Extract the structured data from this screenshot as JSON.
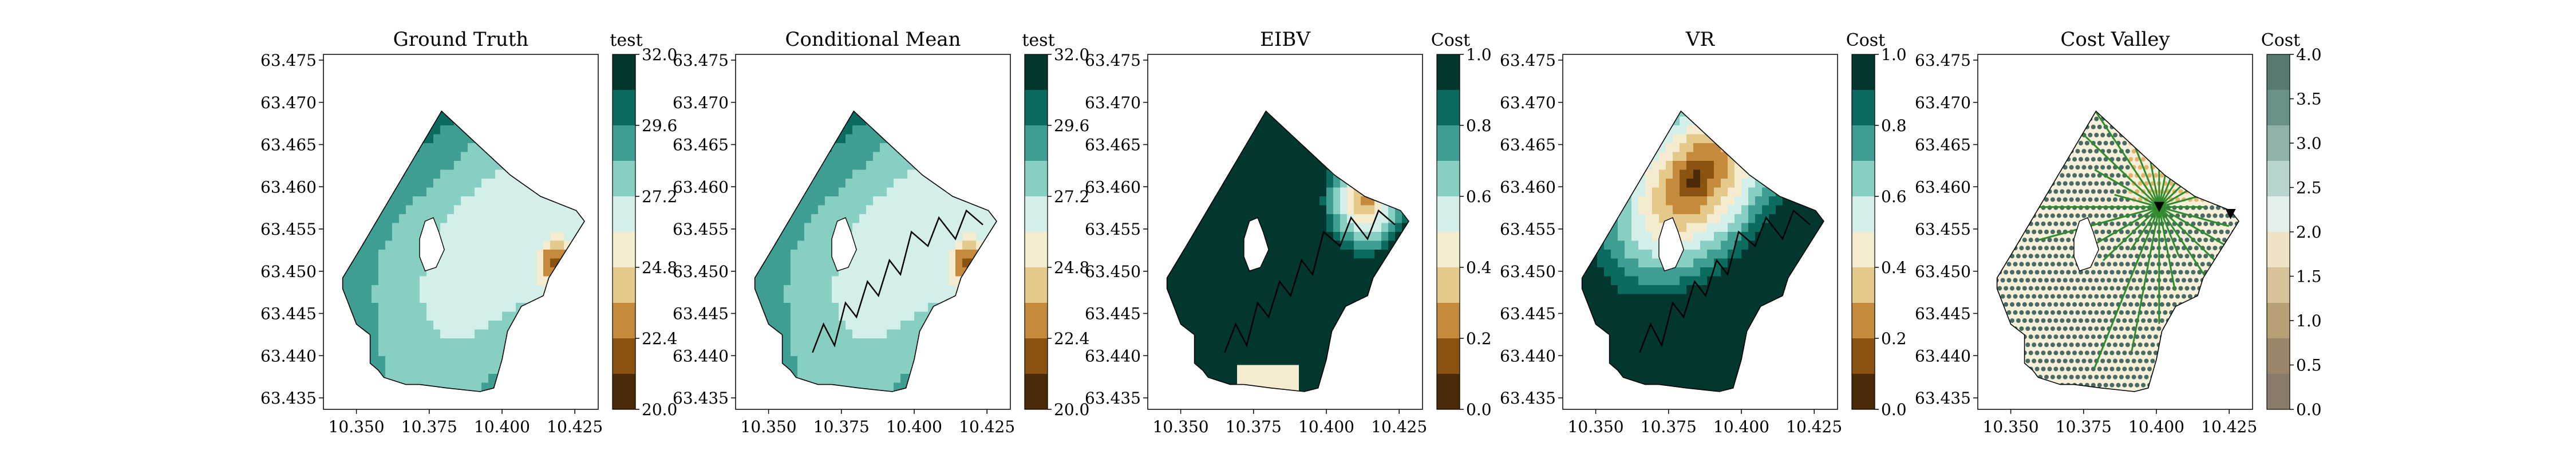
{
  "chart_data": [
    {
      "type": "heatmap",
      "title": "Ground Truth",
      "colorbar_title": "test",
      "colorbar_ticks": [
        "20.0",
        "22.4",
        "24.8",
        "27.2",
        "29.6",
        "32.0"
      ],
      "colorbar_range": [
        20.0,
        32.0
      ],
      "xticks": [
        "10.350",
        "10.375",
        "10.400",
        "10.425"
      ],
      "yticks": [
        "63.435",
        "63.440",
        "63.445",
        "63.450",
        "63.455",
        "63.460",
        "63.465",
        "63.470",
        "63.475"
      ],
      "xlim": [
        10.34,
        10.44
      ],
      "ylim": [
        63.433,
        63.476
      ],
      "colormap": "BrBG",
      "has_path": false
    },
    {
      "type": "heatmap",
      "title": "Conditional Mean",
      "colorbar_title": "test",
      "colorbar_ticks": [
        "20.0",
        "22.4",
        "24.8",
        "27.2",
        "29.6",
        "32.0"
      ],
      "colorbar_range": [
        20.0,
        32.0
      ],
      "xticks": [
        "10.350",
        "10.375",
        "10.400",
        "10.425"
      ],
      "yticks": [
        "63.435",
        "63.440",
        "63.445",
        "63.450",
        "63.455",
        "63.460",
        "63.465",
        "63.470",
        "63.475"
      ],
      "xlim": [
        10.34,
        10.44
      ],
      "ylim": [
        63.433,
        63.476
      ],
      "colormap": "BrBG",
      "has_path": true
    },
    {
      "type": "heatmap",
      "title": "EIBV",
      "colorbar_title": "Cost",
      "colorbar_ticks": [
        "0.0",
        "0.2",
        "0.4",
        "0.6",
        "0.8",
        "1.0"
      ],
      "colorbar_range": [
        0.0,
        1.0
      ],
      "xticks": [
        "10.350",
        "10.375",
        "10.400",
        "10.425"
      ],
      "yticks": [
        "63.435",
        "63.440",
        "63.445",
        "63.450",
        "63.455",
        "63.460",
        "63.465",
        "63.470",
        "63.475"
      ],
      "xlim": [
        10.34,
        10.44
      ],
      "ylim": [
        63.433,
        63.476
      ],
      "colormap": "BrBG",
      "has_path": true
    },
    {
      "type": "heatmap",
      "title": "VR",
      "colorbar_title": "Cost",
      "colorbar_ticks": [
        "0.0",
        "0.2",
        "0.4",
        "0.6",
        "0.8",
        "1.0"
      ],
      "colorbar_range": [
        0.0,
        1.0
      ],
      "xticks": [
        "10.350",
        "10.375",
        "10.400",
        "10.425"
      ],
      "yticks": [
        "63.435",
        "63.440",
        "63.445",
        "63.450",
        "63.455",
        "63.460",
        "63.465",
        "63.470",
        "63.475"
      ],
      "xlim": [
        10.34,
        10.44
      ],
      "ylim": [
        63.433,
        63.476
      ],
      "colormap": "BrBG",
      "has_path": true
    },
    {
      "type": "scatter",
      "title": "Cost Valley",
      "colorbar_title": "Cost",
      "colorbar_ticks": [
        "0.0",
        "0.5",
        "1.0",
        "1.5",
        "2.0",
        "2.5",
        "3.0",
        "3.5",
        "4.0"
      ],
      "colorbar_range": [
        0.0,
        4.0
      ],
      "xticks": [
        "10.350",
        "10.375",
        "10.400",
        "10.425"
      ],
      "yticks": [
        "63.435",
        "63.440",
        "63.445",
        "63.450",
        "63.455",
        "63.460",
        "63.465",
        "63.470",
        "63.475"
      ],
      "xlim": [
        10.34,
        10.44
      ],
      "ylim": [
        63.433,
        63.476
      ],
      "colormap": "BrBG",
      "has_path": false,
      "has_tree": true
    }
  ]
}
